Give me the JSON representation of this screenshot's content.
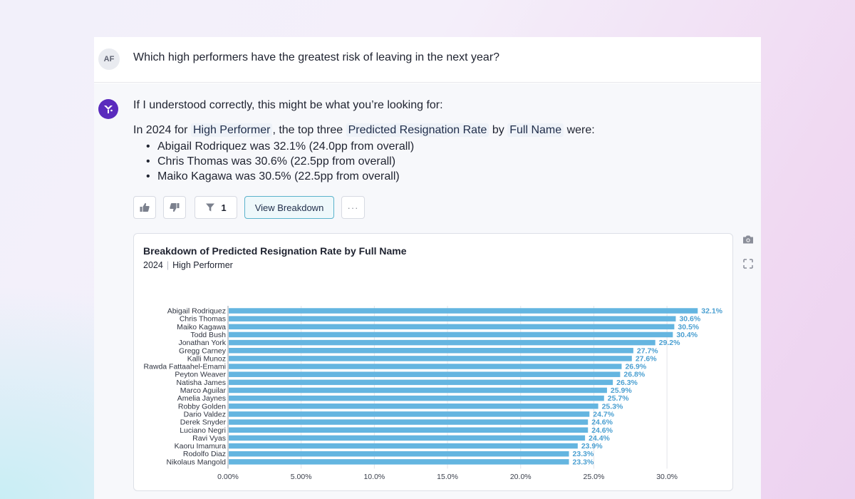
{
  "user": {
    "initials": "AF"
  },
  "question": "Which high performers have the greatest risk of leaving in the next year?",
  "answer": {
    "intro": "If I understood correctly, this might be what you’re looking for:",
    "summary_prefix": "In 2024 for",
    "chip_filter": "High Performer",
    "summary_mid": ", the top three",
    "chip_metric": "Predicted Resignation Rate",
    "summary_by": "by",
    "chip_dimension": "Full Name",
    "summary_suffix": "were:",
    "bullets": [
      "Abigail Rodriquez was 32.1% (24.0pp from overall)",
      "Chris Thomas was 30.6% (22.5pp from overall)",
      "Maiko Kagawa was 30.5% (22.5pp from overall)"
    ]
  },
  "actions": {
    "filter_count": "1",
    "view_breakdown_label": "View Breakdown",
    "more_label": "···"
  },
  "icons": [
    "thumbs-up-icon",
    "thumbs-down-icon",
    "filter-icon",
    "more-icon",
    "camera-icon",
    "expand-icon",
    "bot-logo-icon"
  ],
  "colors": {
    "bar": "#64b5e0",
    "label": "#4a9fd1",
    "brand": "#5a2bbd"
  },
  "chart_data": {
    "type": "bar",
    "orientation": "horizontal",
    "title": "Breakdown of Predicted Resignation Rate by Full Name",
    "subtitle_year": "2024",
    "subtitle_filter": "High Performer",
    "categories": [
      "Abigail Rodriquez",
      "Chris Thomas",
      "Maiko Kagawa",
      "Todd Bush",
      "Jonathan York",
      "Gregg Carney",
      "Kalli Munoz",
      "Rawda Fattaahel-Emami",
      "Peyton Weaver",
      "Natisha James",
      "Marco Aguilar",
      "Amelia Jaynes",
      "Robby Golden",
      "Dario Valdez",
      "Derek Snyder",
      "Luciano Negri",
      "Ravi Vyas",
      "Kaoru Imamura",
      "Rodolfo Diaz",
      "Nikolaus Mangold"
    ],
    "values": [
      32.1,
      30.6,
      30.5,
      30.4,
      29.2,
      27.7,
      27.6,
      26.9,
      26.8,
      26.3,
      25.9,
      25.7,
      25.3,
      24.7,
      24.6,
      24.6,
      24.4,
      23.9,
      23.3,
      23.3
    ],
    "value_labels": [
      "32.1%",
      "30.6%",
      "30.5%",
      "30.4%",
      "29.2%",
      "27.7%",
      "27.6%",
      "26.9%",
      "26.8%",
      "26.3%",
      "25.9%",
      "25.7%",
      "25.3%",
      "24.7%",
      "24.6%",
      "24.6%",
      "24.4%",
      "23.9%",
      "23.3%",
      "23.3%"
    ],
    "xticks": [
      0,
      5,
      10,
      15,
      20,
      25,
      30
    ],
    "xtick_labels": [
      "0.00%",
      "5.00%",
      "10.0%",
      "15.0%",
      "20.0%",
      "25.0%",
      "30.0%"
    ],
    "xlim": [
      0,
      33.5
    ],
    "grid": true
  }
}
